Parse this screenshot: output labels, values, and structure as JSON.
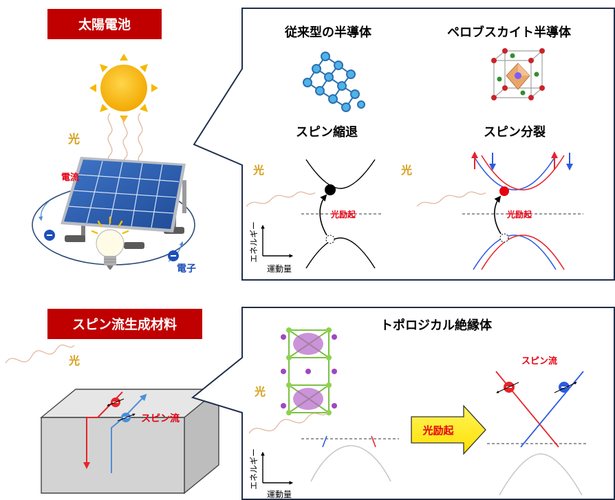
{
  "top": {
    "banner": "太陽電池",
    "light_label": "光",
    "current_label": "電流",
    "electron_label": "電子",
    "conventional": {
      "title": "従来型の半導体",
      "subtitle": "スピン縮退",
      "light_label": "光",
      "excitation_label": "光励起"
    },
    "perovskite": {
      "title": "ペロブスカイト半導体",
      "subtitle": "スピン分裂",
      "light_label": "光",
      "excitation_label": "光励起"
    },
    "axis_y": "エネルギー",
    "axis_x": "運動量"
  },
  "bottom": {
    "banner": "スピン流生成材料",
    "light_label": "光",
    "spin_current_label": "スピン流",
    "topological": {
      "title": "トポロジカル絶縁体",
      "light_label": "光",
      "arrow_label": "光励起",
      "spin_current_label": "スピン流"
    },
    "axis_y": "エネルギー",
    "axis_x": "運動量"
  },
  "colors": {
    "banner_red": "#c00000",
    "spin_up_red": "#e8232a",
    "spin_down_blue": "#2d5be0",
    "light_orange": "#d9a020",
    "excitation_red": "#e60012",
    "arrow_yellow": "#ffee00"
  }
}
